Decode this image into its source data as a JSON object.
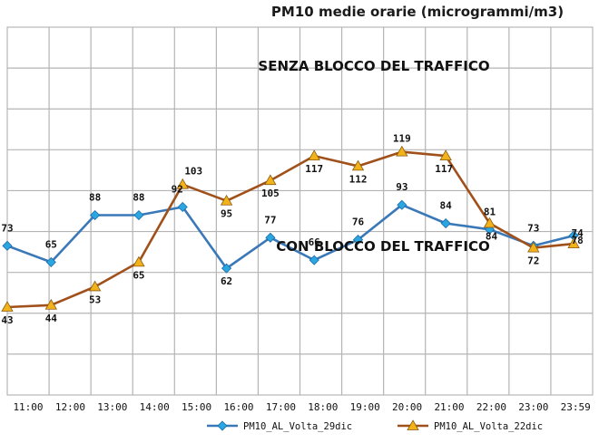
{
  "chart_data": {
    "type": "line",
    "title": "PM10 medie orarie (microgrammi/m3)",
    "categories": [
      "11:00",
      "12:00",
      "13:00",
      "14:00",
      "15:00",
      "16:00",
      "17:00",
      "18:00",
      "19:00",
      "20:00",
      "21:00",
      "22:00",
      "23:00",
      "23:59"
    ],
    "ylim": [
      0,
      180
    ],
    "y_gridlines_every": 20,
    "grid": true,
    "legend_position": "bottom",
    "annotations": [
      {
        "text": "SENZA BLOCCO DEL TRAFFICO",
        "near_series": "PM10_AL_Volta_22dic"
      },
      {
        "text": "CON BLOCCO DEL TRAFFICO",
        "near_series": "PM10_AL_Volta_29dic"
      }
    ],
    "series": [
      {
        "name": "PM10_AL_Volta_29dic",
        "color": "#3a78b8",
        "marker_color": "#2aa6e0",
        "marker": "diamond",
        "values": [
          73,
          65,
          88,
          88,
          92,
          62,
          77,
          66,
          76,
          93,
          84,
          81,
          73,
          78
        ],
        "labels": [
          "73",
          "65",
          "88",
          "88",
          "92",
          "62",
          "77",
          "66",
          "76",
          "93",
          "84",
          "81",
          "73",
          "78"
        ]
      },
      {
        "name": "PM10_AL_Volta_22dic",
        "color": "#a0501a",
        "marker_color": "#f2b21a",
        "marker": "triangle",
        "values": [
          43,
          44,
          53,
          65,
          103,
          95,
          105,
          117,
          112,
          119,
          117,
          84,
          72,
          74
        ],
        "labels": [
          "43",
          "44",
          "53",
          "65",
          "103",
          "95",
          "105",
          "117",
          "112",
          "119",
          "117",
          "84",
          "72",
          "74"
        ]
      }
    ]
  }
}
